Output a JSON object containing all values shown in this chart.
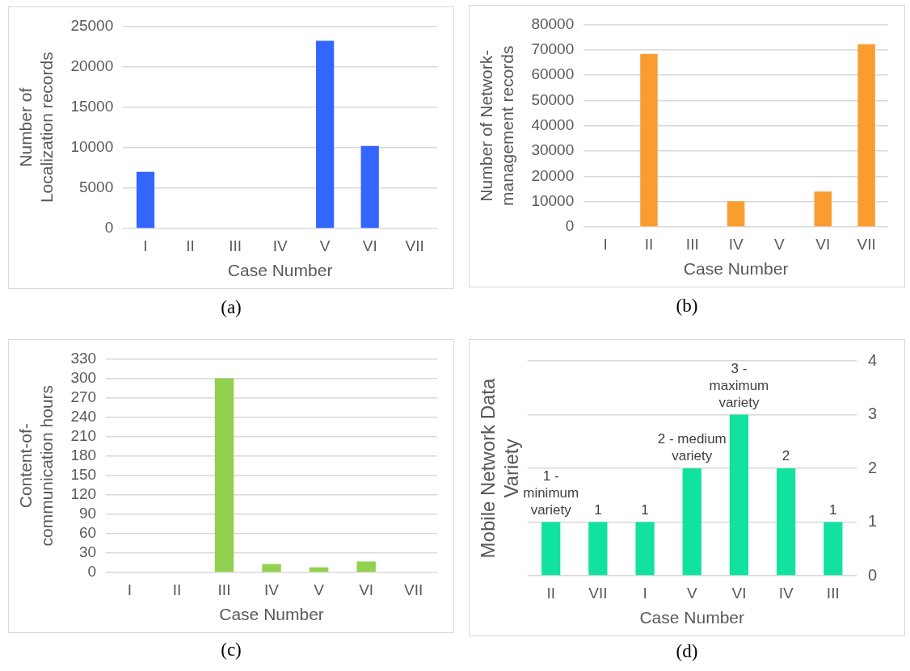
{
  "chart_data": [
    {
      "type": "bar",
      "categories": [
        "I",
        "II",
        "III",
        "IV",
        "V",
        "VI",
        "VII"
      ],
      "xlabel": "Case Number",
      "ylabel": "Number of Localization records",
      "series": [
        {
          "color": "#3366ff",
          "values": [
            7000,
            0,
            0,
            0,
            23200,
            10200,
            0
          ]
        }
      ],
      "ylim": [
        0,
        25000
      ],
      "yticks": [
        0,
        5000,
        10000,
        15000,
        20000,
        25000
      ],
      "grid": "y",
      "legend": false,
      "annotations": [
        "(a)"
      ]
    },
    {
      "type": "bar",
      "categories": [
        "I",
        "II",
        "III",
        "IV",
        "V",
        "VI",
        "VII"
      ],
      "xlabel": "Case Number",
      "ylabel": "Number of Network-management records",
      "series": [
        {
          "color": "#f99d31",
          "values": [
            0,
            68400,
            0,
            10100,
            0,
            14000,
            72200
          ]
        }
      ],
      "ylim": [
        0,
        80000
      ],
      "yticks": [
        0,
        10000,
        20000,
        30000,
        40000,
        50000,
        60000,
        70000,
        80000
      ],
      "grid": "y",
      "legend": false,
      "annotations": [
        "(b)"
      ]
    },
    {
      "type": "bar",
      "categories": [
        "I",
        "II",
        "III",
        "IV",
        "V",
        "VI",
        "VII"
      ],
      "xlabel": "Case Number",
      "ylabel": "Content-of-communication hours",
      "series": [
        {
          "color": "#92d050",
          "values": [
            0,
            0,
            300,
            13,
            8,
            17,
            0
          ]
        }
      ],
      "ylim": [
        0,
        330
      ],
      "yticks": [
        0,
        30,
        60,
        90,
        120,
        150,
        180,
        210,
        240,
        270,
        300,
        330
      ],
      "grid": "y",
      "legend": false,
      "annotations": [
        "(c)"
      ]
    },
    {
      "type": "bar",
      "categories": [
        "II",
        "VII",
        "I",
        "V",
        "VI",
        "IV",
        "III"
      ],
      "xlabel": "Case Number",
      "ylabel": "Mobile Network Data Variety",
      "series": [
        {
          "color": "#12e29f",
          "axis": "y2",
          "values": [
            1,
            1,
            1,
            2,
            3,
            2,
            1
          ],
          "value_labels": [
            "1 - minimum variety",
            "1",
            "1",
            "2 - medium variety",
            "3 - maximum variety",
            "2",
            "1"
          ]
        }
      ],
      "y2lim": [
        0,
        4
      ],
      "y2ticks": [
        0,
        1,
        2,
        3,
        4
      ],
      "grid": "y",
      "legend": false,
      "annotations": [
        "(d)"
      ]
    }
  ]
}
